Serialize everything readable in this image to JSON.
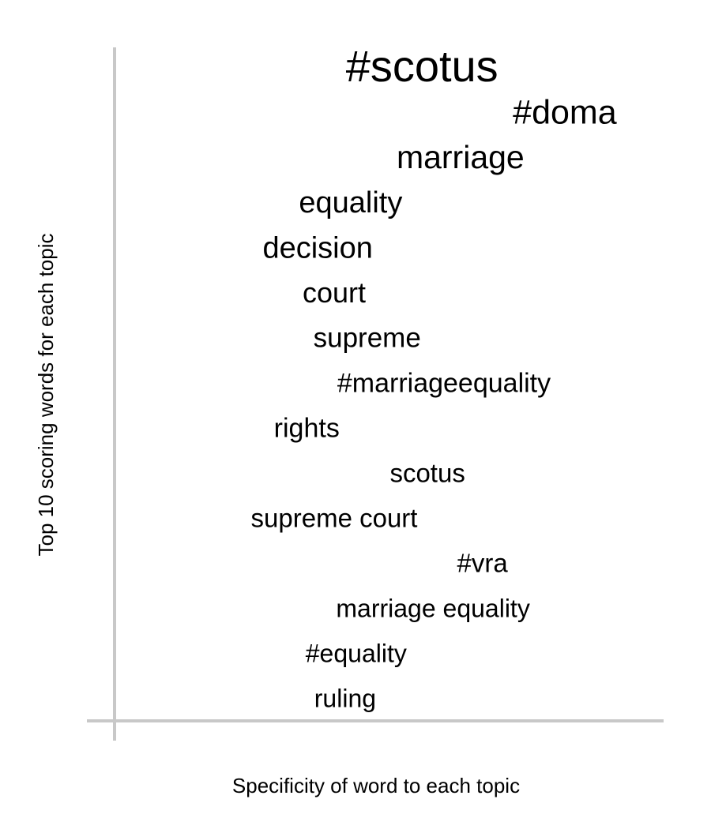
{
  "chart_data": {
    "type": "scatter",
    "xlabel": "Specificity of word to each topic",
    "ylabel": "Top 10 scoring words for each topic",
    "axis_color": "#c8c8c8",
    "text_color": "#000000",
    "words": [
      {
        "text": "#scotus",
        "x": 0.56,
        "weight": 1.0
      },
      {
        "text": "#doma",
        "x": 0.82,
        "weight": 0.62
      },
      {
        "text": "marriage",
        "x": 0.63,
        "weight": 0.58
      },
      {
        "text": "equality",
        "x": 0.43,
        "weight": 0.48
      },
      {
        "text": "decision",
        "x": 0.37,
        "weight": 0.48
      },
      {
        "text": "court",
        "x": 0.4,
        "weight": 0.42
      },
      {
        "text": "supreme",
        "x": 0.46,
        "weight": 0.4
      },
      {
        "text": "#marriageequality",
        "x": 0.6,
        "weight": 0.38
      },
      {
        "text": "rights",
        "x": 0.35,
        "weight": 0.38
      },
      {
        "text": "scotus",
        "x": 0.57,
        "weight": 0.36
      },
      {
        "text": "supreme court",
        "x": 0.4,
        "weight": 0.36
      },
      {
        "text": "#vra",
        "x": 0.67,
        "weight": 0.34
      },
      {
        "text": "marriage equality",
        "x": 0.58,
        "weight": 0.32
      },
      {
        "text": "#equality",
        "x": 0.44,
        "weight": 0.32
      },
      {
        "text": "ruling",
        "x": 0.42,
        "weight": 0.32
      }
    ]
  }
}
